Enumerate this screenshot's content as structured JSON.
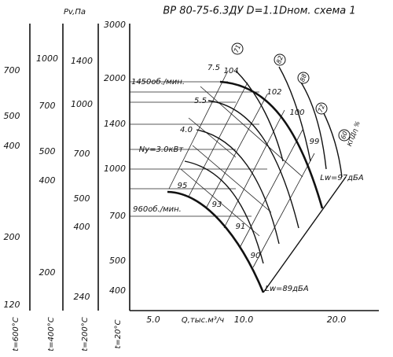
{
  "title": "ВР 80-75-6.3ДУ D=1.1Dном. схема 1",
  "pressure_label": "Pv,Па",
  "scales": [
    {
      "footer": "t=600°C",
      "ticks": [
        "700",
        "500",
        "400",
        "200",
        "120"
      ]
    },
    {
      "footer": "t=400°C",
      "ticks": [
        "1000",
        "700",
        "500",
        "400",
        "200"
      ]
    },
    {
      "footer": "t=200°C",
      "ticks": [
        "1400",
        "1000",
        "700",
        "500",
        "400",
        "240"
      ]
    },
    {
      "footer": "t=20°C",
      "ticks": [
        "3000",
        "2000",
        "1400",
        "1000",
        "700",
        "500",
        "400"
      ]
    }
  ],
  "x_axis": {
    "label": "Q,тыс.м³/ч",
    "ticks": [
      "5.0",
      "10.0",
      "20.0"
    ]
  },
  "power_labels": [
    "7.5",
    "5.5",
    "4.0",
    "Ny=3.0кВт"
  ],
  "speed_labels": [
    "1450об./мин.",
    "960об./мин."
  ],
  "point_labels": [
    "104",
    "102",
    "100",
    "99",
    "95",
    "93",
    "91",
    "90"
  ],
  "efficiency_labels": [
    "71",
    "82",
    "88",
    "72",
    "60"
  ],
  "efficiency_title": "КПДη %",
  "noise_labels": [
    "Lw=97дБА",
    "Lw=89дБА"
  ]
}
